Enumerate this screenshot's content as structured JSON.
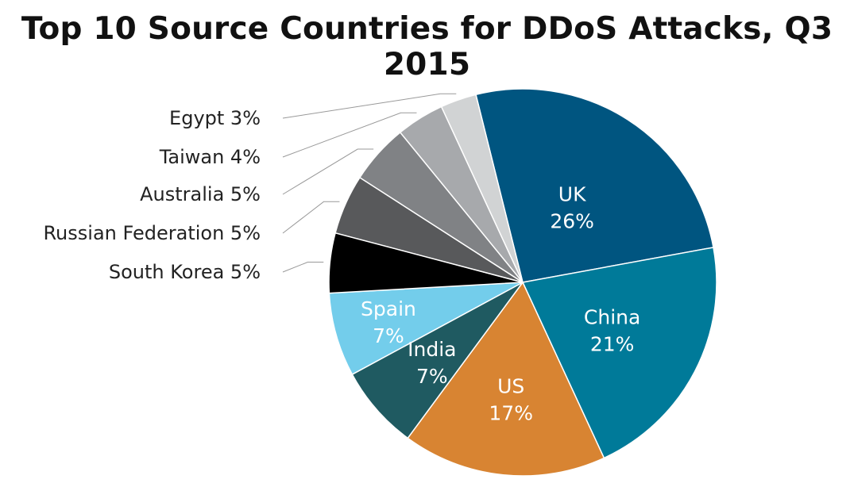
{
  "chart_data": {
    "type": "pie",
    "title": "Top 10 Source Countries for DDoS Attacks, Q3 2015",
    "slices": [
      {
        "label": "UK",
        "value": 26,
        "value_label": "26%",
        "color": "#005580",
        "label_inside": true
      },
      {
        "label": "China",
        "value": 21,
        "value_label": "21%",
        "color": "#007a99",
        "label_inside": true
      },
      {
        "label": "US",
        "value": 17,
        "value_label": "17%",
        "color": "#d88432",
        "label_inside": true
      },
      {
        "label": "India",
        "value": 7,
        "value_label": "7%",
        "color": "#1f5a61",
        "label_inside": true
      },
      {
        "label": "Spain",
        "value": 7,
        "value_label": "7%",
        "color": "#73cdeb",
        "label_inside": true
      },
      {
        "label": "South Korea",
        "value": 5,
        "value_label": "5%",
        "color": "#000000",
        "label_inside": false
      },
      {
        "label": "Russian Federation",
        "value": 5,
        "value_label": "5%",
        "color": "#58595b",
        "label_inside": false
      },
      {
        "label": "Australia",
        "value": 5,
        "value_label": "5%",
        "color": "#808285",
        "label_inside": false
      },
      {
        "label": "Taiwan",
        "value": 4,
        "value_label": "4%",
        "color": "#a7a9ac",
        "label_inside": false
      },
      {
        "label": "Egypt",
        "value": 3,
        "value_label": "3%",
        "color": "#d1d3d4",
        "label_inside": false
      }
    ]
  }
}
